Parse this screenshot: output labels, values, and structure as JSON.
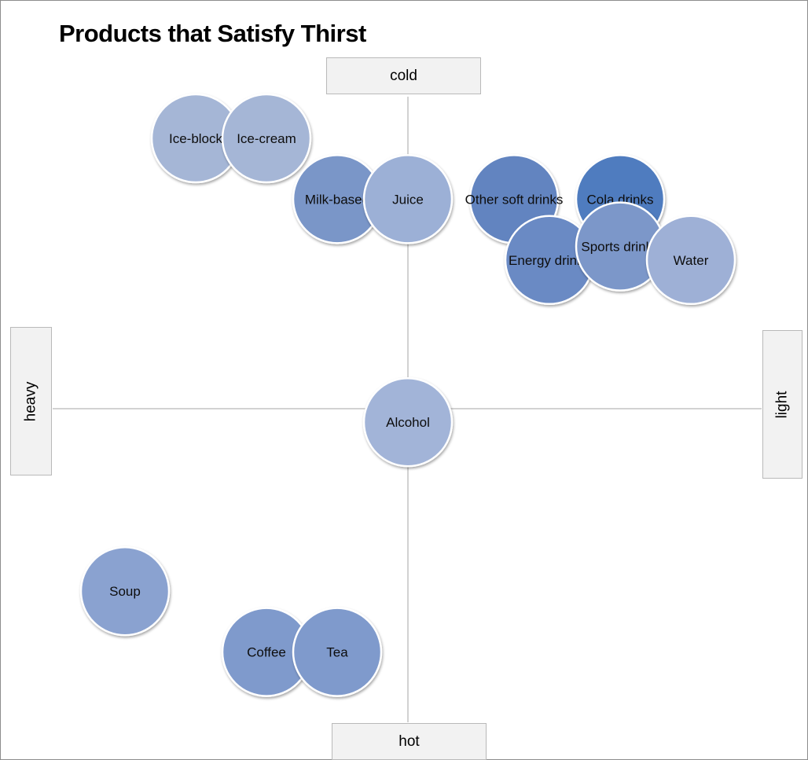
{
  "chart_data": {
    "type": "scatter",
    "title": "Products that Satisfy Thirst",
    "axes": {
      "top_label": "cold",
      "bottom_label": "hot",
      "left_label": "heavy",
      "right_label": "light"
    },
    "xlim": [
      -1,
      1
    ],
    "ylim": [
      -1,
      1
    ],
    "grid": false,
    "legend": "none",
    "points": [
      {
        "label": "Ice-block",
        "x": -0.6,
        "y": 0.8,
        "color": "#a5b6d6"
      },
      {
        "label": "Ice-cream",
        "x": -0.4,
        "y": 0.8,
        "color": "#a5b6d6"
      },
      {
        "label": "Milk-based",
        "x": -0.2,
        "y": 0.62,
        "color": "#7a96c8"
      },
      {
        "label": "Juice",
        "x": 0.0,
        "y": 0.62,
        "color": "#9cb0d6"
      },
      {
        "label": "Other soft drinks",
        "x": 0.3,
        "y": 0.62,
        "color": "#6284c0"
      },
      {
        "label": "Cola drinks",
        "x": 0.6,
        "y": 0.62,
        "color": "#4f7cbf"
      },
      {
        "label": "Energy drinks",
        "x": 0.4,
        "y": 0.44,
        "color": "#6a8ac4"
      },
      {
        "label": "Sports drinks",
        "x": 0.6,
        "y": 0.48,
        "color": "#7b97c9"
      },
      {
        "label": "Water",
        "x": 0.8,
        "y": 0.44,
        "color": "#9eb0d6"
      },
      {
        "label": "Alcohol",
        "x": 0.0,
        "y": -0.04,
        "color": "#a2b4d8"
      },
      {
        "label": "Soup",
        "x": -0.8,
        "y": -0.54,
        "color": "#8aa2d0"
      },
      {
        "label": "Coffee",
        "x": -0.4,
        "y": -0.72,
        "color": "#7f9acc"
      },
      {
        "label": "Tea",
        "x": -0.2,
        "y": -0.72,
        "color": "#7f9acc"
      }
    ]
  }
}
